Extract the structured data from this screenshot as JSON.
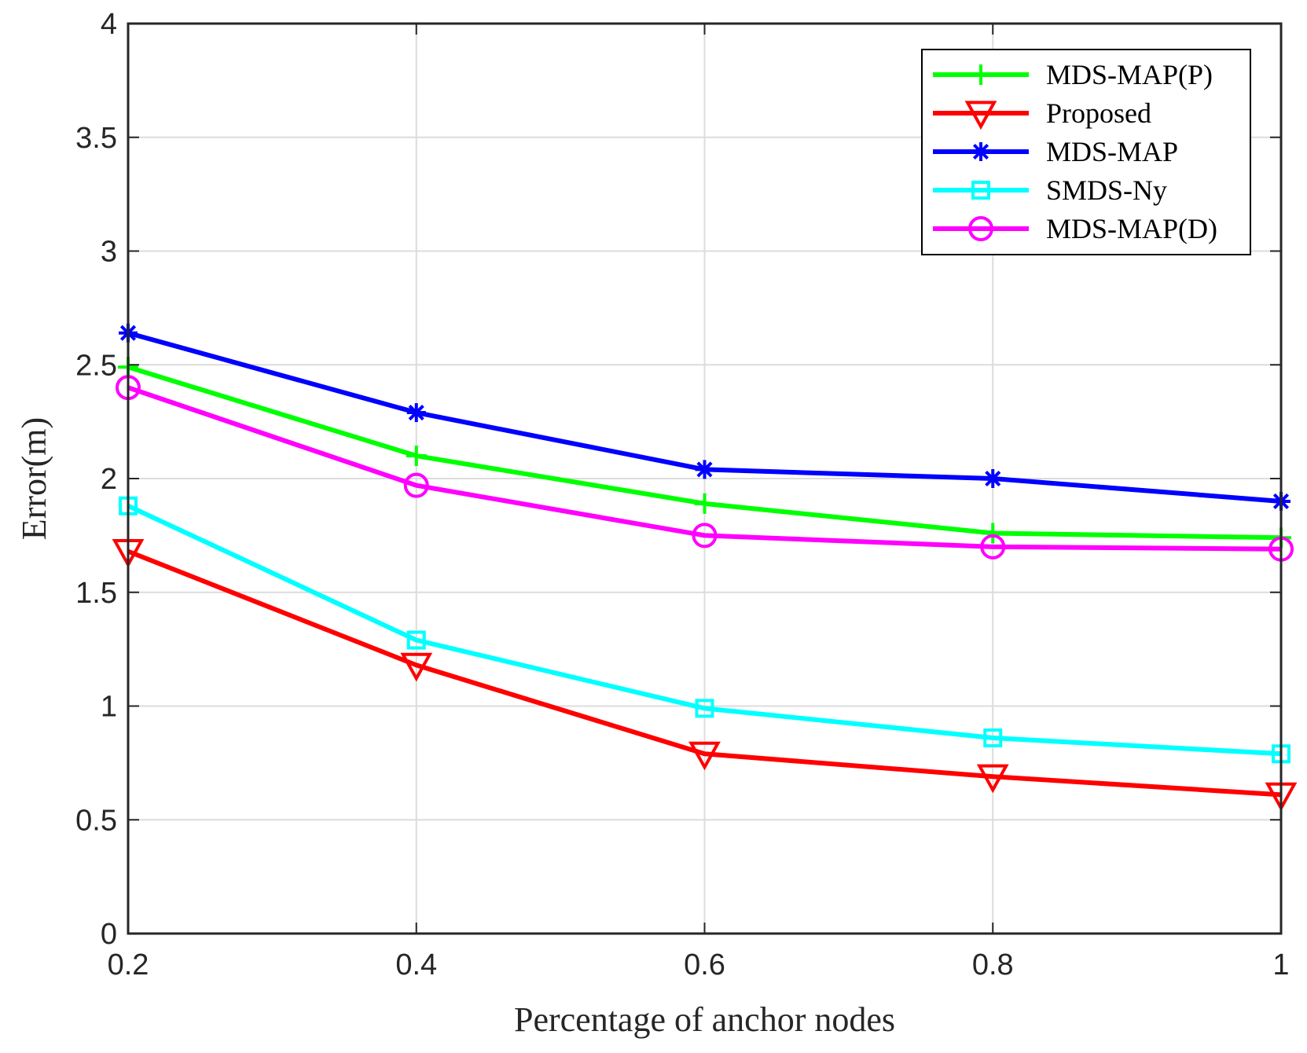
{
  "chart_data": {
    "type": "line",
    "title": "",
    "xlabel": "Percentage of anchor nodes",
    "ylabel": "Error(m)",
    "x": [
      0.2,
      0.4,
      0.6,
      0.8,
      1
    ],
    "xlim": [
      0.2,
      1
    ],
    "ylim": [
      0,
      4
    ],
    "xticks": [
      "0.2",
      "0.4",
      "0.6",
      "0.8",
      "1"
    ],
    "yticks": [
      "0",
      "0.5",
      "1",
      "1.5",
      "2",
      "2.5",
      "3",
      "3.5",
      "4"
    ],
    "grid": true,
    "legend_position": "top-right",
    "series": [
      {
        "name": "MDS-MAP(P)",
        "color": "#00ff00",
        "marker": "plus",
        "values": [
          2.49,
          2.1,
          1.89,
          1.76,
          1.74
        ]
      },
      {
        "name": "Proposed",
        "color": "#ff0000",
        "marker": "triangle-down",
        "values": [
          1.68,
          1.18,
          0.79,
          0.69,
          0.61
        ]
      },
      {
        "name": "MDS-MAP",
        "color": "#0000ff",
        "marker": "asterisk",
        "values": [
          2.64,
          2.29,
          2.04,
          2.0,
          1.9
        ]
      },
      {
        "name": "SMDS-Ny",
        "color": "#00ffff",
        "marker": "square",
        "values": [
          1.88,
          1.29,
          0.99,
          0.86,
          0.79
        ]
      },
      {
        "name": "MDS-MAP(D)",
        "color": "#ff00ff",
        "marker": "circle",
        "values": [
          2.4,
          1.97,
          1.75,
          1.7,
          1.69
        ]
      }
    ]
  }
}
